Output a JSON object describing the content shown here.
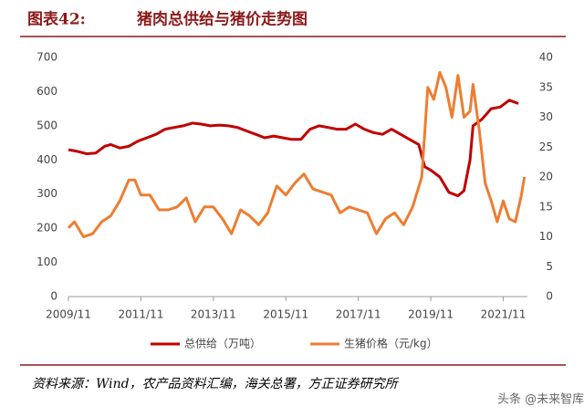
{
  "chart_data": {
    "type": "line",
    "title_label": "图表42:",
    "title": "猪肉总供给与猪价走势图",
    "source": "资料来源：Wind，农产品资料汇编，海关总署，方正证券研究所",
    "watermark": "头条 @未来智库",
    "xlim": [
      "2009/11",
      "2022/07"
    ],
    "xticks": [
      "2009/11",
      "2011/11",
      "2013/11",
      "2015/11",
      "2017/11",
      "2019/11",
      "2021/11"
    ],
    "ylim": [
      0,
      700
    ],
    "yticks": [
      0,
      100,
      200,
      300,
      400,
      500,
      600,
      700
    ],
    "y2lim": [
      0,
      40
    ],
    "y2ticks": [
      0,
      5,
      10,
      15,
      20,
      25,
      30,
      35,
      40
    ],
    "legend": "bottom",
    "series": [
      {
        "name": "总供给（万吨）",
        "color": "#c00000",
        "x": [
          "2009/11",
          "2010/02",
          "2010/05",
          "2010/08",
          "2010/11",
          "2011/01",
          "2011/04",
          "2011/07",
          "2011/10",
          "2012/01",
          "2012/04",
          "2012/07",
          "2012/10",
          "2013/01",
          "2013/04",
          "2013/07",
          "2013/10",
          "2014/01",
          "2014/04",
          "2014/07",
          "2014/10",
          "2015/01",
          "2015/04",
          "2015/07",
          "2015/10",
          "2016/01",
          "2016/04",
          "2016/07",
          "2016/10",
          "2017/01",
          "2017/04",
          "2017/07",
          "2017/10",
          "2018/01",
          "2018/04",
          "2018/07",
          "2018/10",
          "2019/01",
          "2019/04",
          "2019/07",
          "2019/09",
          "2019/11",
          "2020/02",
          "2020/05",
          "2020/08",
          "2020/10",
          "2020/12",
          "2021/01",
          "2021/04",
          "2021/07",
          "2021/10",
          "2022/01",
          "2022/04"
        ],
        "values": [
          430,
          425,
          418,
          420,
          440,
          445,
          435,
          440,
          455,
          465,
          475,
          490,
          495,
          500,
          508,
          505,
          500,
          502,
          500,
          495,
          485,
          475,
          465,
          470,
          465,
          460,
          460,
          490,
          500,
          495,
          490,
          490,
          505,
          490,
          480,
          475,
          490,
          475,
          460,
          445,
          380,
          370,
          350,
          305,
          295,
          310,
          400,
          500,
          520,
          550,
          555,
          575,
          565
        ]
      },
      {
        "name": "生猪价格（元/kg）",
        "color": "#ed7d31",
        "axis": "y2",
        "x": [
          "2009/11",
          "2010/01",
          "2010/04",
          "2010/07",
          "2010/10",
          "2011/01",
          "2011/04",
          "2011/07",
          "2011/09",
          "2011/11",
          "2012/02",
          "2012/05",
          "2012/08",
          "2012/11",
          "2013/02",
          "2013/05",
          "2013/08",
          "2013/11",
          "2014/02",
          "2014/05",
          "2014/08",
          "2014/11",
          "2015/02",
          "2015/05",
          "2015/08",
          "2015/11",
          "2016/02",
          "2016/05",
          "2016/08",
          "2016/11",
          "2017/02",
          "2017/05",
          "2017/08",
          "2017/11",
          "2018/02",
          "2018/05",
          "2018/08",
          "2018/11",
          "2019/02",
          "2019/05",
          "2019/08",
          "2019/10",
          "2019/12",
          "2020/02",
          "2020/04",
          "2020/06",
          "2020/08",
          "2020/10",
          "2020/12",
          "2021/01",
          "2021/03",
          "2021/05",
          "2021/07",
          "2021/09",
          "2021/11",
          "2022/01",
          "2022/03",
          "2022/05",
          "2022/06"
        ],
        "values": [
          11.5,
          12.5,
          10,
          10.5,
          12.5,
          13.5,
          16,
          19.5,
          19.5,
          17,
          17,
          14.5,
          14.5,
          15,
          16.5,
          12.5,
          15,
          15,
          13,
          10.5,
          14.5,
          13.5,
          12,
          14,
          18.5,
          17,
          19,
          20.5,
          18,
          17.5,
          17,
          14,
          15,
          14.5,
          14,
          10.5,
          13,
          14,
          12,
          15,
          20,
          35,
          33,
          37.5,
          35,
          30,
          37,
          30,
          31,
          35.5,
          28,
          19,
          16,
          12.5,
          16,
          13,
          12.5,
          17,
          20
        ]
      }
    ]
  }
}
